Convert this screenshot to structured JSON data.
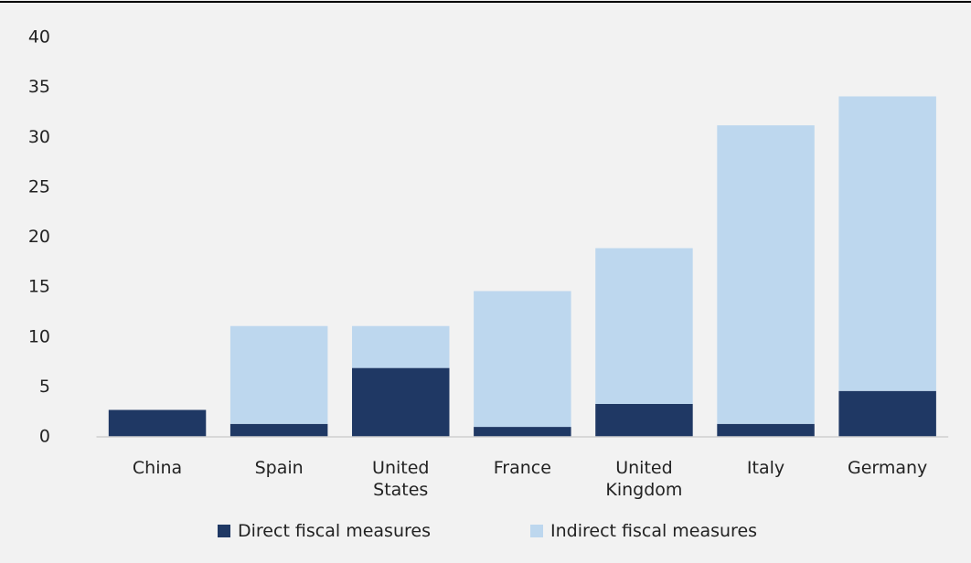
{
  "chart_data": {
    "type": "stacked_bar",
    "categories": [
      "China",
      "Spain",
      "United States",
      "France",
      "United Kingdom",
      "Italy",
      "Germany"
    ],
    "series": [
      {
        "name": "Direct fiscal measures",
        "color": "#1f3864",
        "values": [
          2.7,
          1.3,
          6.9,
          1.0,
          3.3,
          1.3,
          4.6
        ]
      },
      {
        "name": "Indirect fiscal measures",
        "color": "#bdd7ee",
        "values": [
          0,
          9.8,
          4.2,
          13.6,
          15.6,
          29.9,
          29.5
        ]
      }
    ],
    "ylim": [
      0,
      40
    ],
    "yticks": [
      0,
      5,
      10,
      15,
      20,
      25,
      30,
      35,
      40
    ],
    "grid": false,
    "legend": "bottom"
  }
}
